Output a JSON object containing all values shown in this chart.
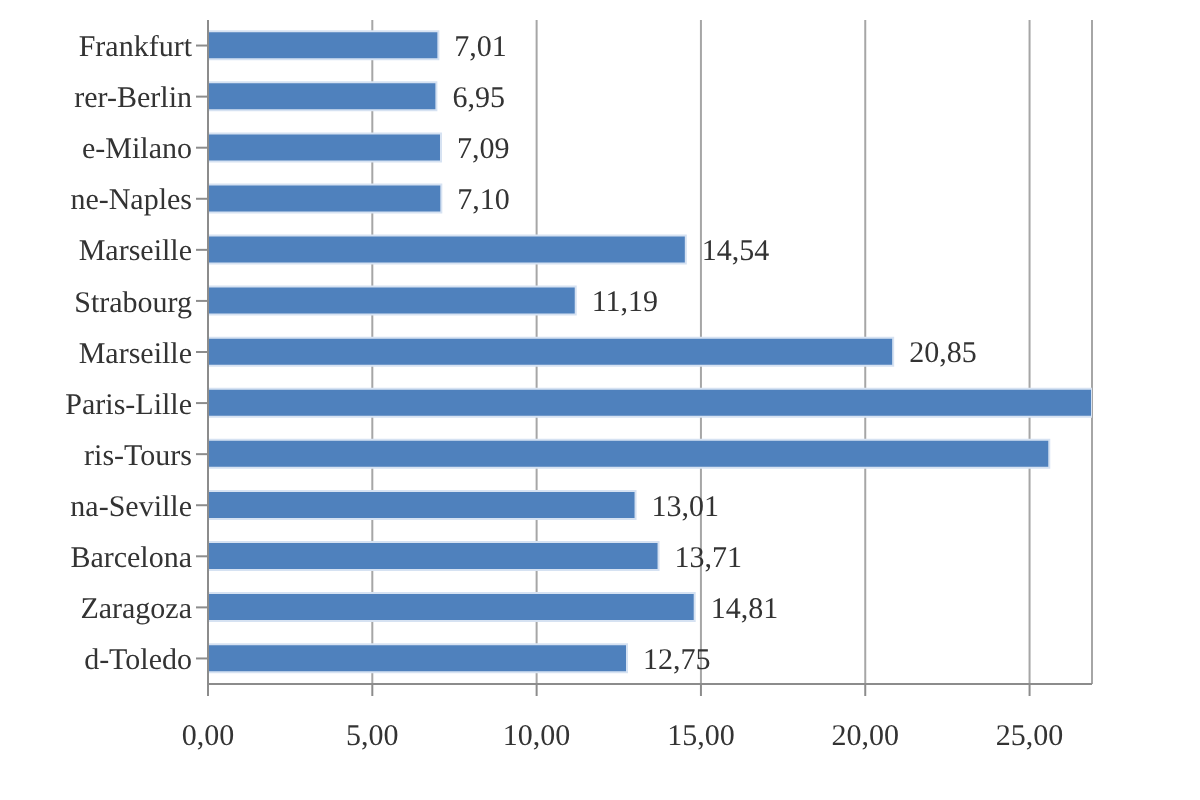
{
  "chart_data": {
    "type": "bar",
    "orientation": "horizontal",
    "categories": [
      "Frankfurt",
      "rer-Berlin",
      "e-Milano",
      "ne-Naples",
      "Marseille",
      "Strabourg",
      "Marseille",
      "Paris-Lille",
      "ris-Tours",
      "na-Seville",
      "Barcelona",
      "Zaragoza",
      "d-Toledo"
    ],
    "values": [
      7.01,
      6.95,
      7.09,
      7.1,
      14.54,
      11.19,
      20.85,
      26.9,
      25.6,
      13.01,
      13.71,
      14.81,
      12.75
    ],
    "value_labels": [
      "7,01",
      "6,95",
      "7,09",
      "7,10",
      "14,54",
      "11,19",
      "20,85",
      null,
      null,
      "13,01",
      "13,71",
      "14,81",
      "12,75"
    ],
    "color": "#4f81bd",
    "xlim": [
      0,
      26.9
    ],
    "xticks": [
      {
        "value": 0,
        "label": "0,00"
      },
      {
        "value": 5,
        "label": "5,00"
      },
      {
        "value": 10,
        "label": "10,00"
      },
      {
        "value": 15,
        "label": "15,00"
      },
      {
        "value": 20,
        "label": "20,00"
      },
      {
        "value": 25,
        "label": "25,00"
      }
    ],
    "grid": "x"
  }
}
